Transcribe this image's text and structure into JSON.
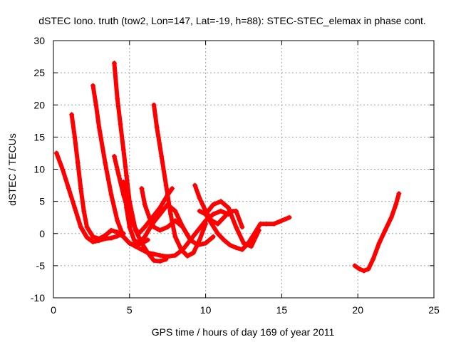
{
  "chart_data": {
    "type": "scatter",
    "title": "dSTEC Iono. truth (tow2, Lon=147, Lat=-19, h=88): STEC-STEC_elemax in phase cont.",
    "xlabel": "GPS time / hours of day 169 of year 2011",
    "ylabel": "dSTEC  / TECUs",
    "xlim": [
      0,
      25
    ],
    "ylim": [
      -10,
      30
    ],
    "xticks": [
      0,
      5,
      10,
      15,
      20,
      25
    ],
    "yticks": [
      -10,
      -5,
      0,
      5,
      10,
      15,
      20,
      25,
      30
    ],
    "grid": true,
    "marker": "+",
    "color": "#ff0000",
    "series": [
      {
        "x": [
          0.2,
          0.6,
          1.0,
          1.4,
          1.8,
          2.2,
          2.6,
          3.0,
          3.4,
          3.8,
          4.2,
          4.6
        ],
        "y": [
          12.5,
          10.0,
          7.0,
          4.0,
          1.0,
          -0.6,
          -1.3,
          -1.1,
          -0.8,
          -0.7,
          -0.4,
          0.0
        ]
      },
      {
        "x": [
          1.2,
          1.4,
          1.6,
          1.8,
          2.0,
          2.2,
          2.6,
          3.0,
          3.4,
          3.8,
          4.2,
          4.6,
          5.0
        ],
        "y": [
          18.5,
          15.0,
          11.0,
          7.0,
          3.5,
          1.0,
          -0.5,
          -0.8,
          -0.3,
          0.5,
          0.2,
          -0.5,
          -1.5
        ]
      },
      {
        "x": [
          2.6,
          2.8,
          3.0,
          3.4,
          3.8,
          4.2,
          4.6,
          5.0,
          5.4,
          5.8,
          6.2
        ],
        "y": [
          23.0,
          20.0,
          16.5,
          11.0,
          6.0,
          2.0,
          -0.5,
          -1.5,
          -1.8,
          -1.5,
          -1.0
        ]
      },
      {
        "x": [
          4.0,
          4.2,
          4.4,
          4.6,
          4.8,
          5.0,
          5.4,
          5.8,
          6.2,
          6.6,
          7.0,
          7.4
        ],
        "y": [
          26.5,
          21.0,
          17.0,
          13.0,
          9.0,
          5.0,
          0.5,
          -1.5,
          -3.0,
          -4.2,
          -4.3,
          -4.0
        ]
      },
      {
        "x": [
          4.0,
          4.3,
          4.6,
          4.9,
          5.2,
          5.6,
          6.0,
          6.5,
          7.0,
          7.5,
          7.8
        ],
        "y": [
          12.0,
          9.0,
          6.0,
          3.5,
          1.5,
          0.0,
          1.0,
          2.5,
          4.0,
          6.0,
          7.0
        ]
      },
      {
        "x": [
          4.6,
          4.8,
          5.0,
          5.3,
          5.6,
          6.0,
          6.5,
          7.0,
          7.5,
          8.0,
          8.5,
          9.0
        ],
        "y": [
          8.0,
          4.0,
          1.0,
          -1.0,
          -1.5,
          -0.5,
          1.5,
          3.0,
          4.5,
          3.5,
          1.0,
          -1.0
        ]
      },
      {
        "x": [
          5.8,
          6.0,
          6.3,
          6.6,
          7.0,
          7.5,
          8.0,
          8.5,
          9.0,
          9.5,
          10.0,
          10.5
        ],
        "y": [
          7.0,
          4.5,
          2.5,
          1.0,
          0.5,
          1.0,
          2.0,
          1.0,
          -1.0,
          -1.8,
          -1.5,
          -0.5
        ]
      },
      {
        "x": [
          6.6,
          6.8,
          7.1,
          7.4,
          7.7,
          8.0,
          8.4,
          8.8,
          9.2,
          9.6,
          10.0
        ],
        "y": [
          20.0,
          16.5,
          12.0,
          7.5,
          3.0,
          -0.5,
          -2.5,
          -3.5,
          -3.0,
          -1.0,
          1.5
        ]
      },
      {
        "x": [
          5.0,
          5.4,
          5.8,
          6.2,
          6.6,
          7.0,
          7.5,
          8.0,
          8.5,
          9.0,
          9.5,
          10.0,
          10.5,
          11.0,
          11.5
        ],
        "y": [
          -1.5,
          -2.0,
          -2.5,
          -3.0,
          -3.2,
          -3.4,
          -3.6,
          -3.4,
          -2.5,
          -1.0,
          0.5,
          2.0,
          3.0,
          3.5,
          3.0
        ]
      },
      {
        "x": [
          9.3,
          9.6,
          10.0,
          10.4,
          10.8,
          11.2,
          11.6,
          12.0,
          12.4
        ],
        "y": [
          7.5,
          5.5,
          3.5,
          2.0,
          1.5,
          2.5,
          3.5,
          3.5,
          1.0
        ]
      },
      {
        "x": [
          9.6,
          10.0,
          10.4,
          10.8,
          11.2,
          11.6,
          12.0,
          12.4,
          12.8,
          13.2,
          13.6,
          14.0,
          14.5,
          15.0,
          15.5
        ],
        "y": [
          3.5,
          3.0,
          1.5,
          0.0,
          -1.0,
          -1.8,
          -2.2,
          -2.5,
          -1.5,
          0.0,
          1.5,
          1.5,
          1.5,
          2.0,
          2.5
        ]
      },
      {
        "x": [
          10.0,
          10.5,
          11.0,
          11.5,
          12.0,
          12.5,
          13.0,
          13.5
        ],
        "y": [
          3.0,
          4.5,
          5.0,
          4.0,
          1.0,
          -1.5,
          -2.0,
          0.5
        ]
      },
      {
        "x": [
          19.8,
          20.1,
          20.4,
          20.7,
          21.0,
          21.4,
          21.8,
          22.2,
          22.5,
          22.7
        ],
        "y": [
          -5.0,
          -5.5,
          -5.8,
          -5.5,
          -4.0,
          -1.5,
          0.5,
          2.5,
          4.5,
          6.2
        ]
      }
    ]
  }
}
